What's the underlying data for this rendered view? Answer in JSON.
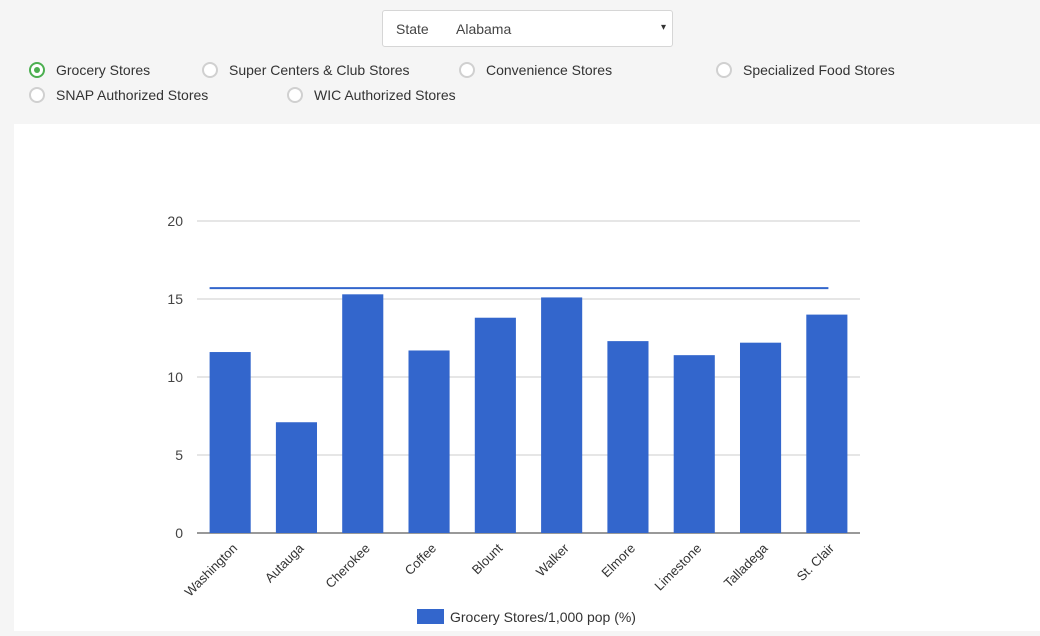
{
  "state_select": {
    "label": "State",
    "value": "Alabama",
    "caret": "▾"
  },
  "store_types": [
    {
      "label": "Grocery Stores",
      "checked": true
    },
    {
      "label": "Super Centers & Club Stores",
      "checked": false
    },
    {
      "label": "Convenience Stores",
      "checked": false
    },
    {
      "label": "Specialized Food Stores",
      "checked": false
    },
    {
      "label": "SNAP Authorized Stores",
      "checked": false
    },
    {
      "label": "WIC Authorized Stores",
      "checked": false
    }
  ],
  "chart_data": {
    "type": "bar",
    "categories": [
      "Washington",
      "Autauga",
      "Cherokee",
      "Coffee",
      "Blount",
      "Walker",
      "Elmore",
      "Limestone",
      "Talladega",
      "St. Clair"
    ],
    "series": [
      {
        "name": "Grocery Stores/1,000 pop (%)",
        "values": [
          11.6,
          7.1,
          15.3,
          11.7,
          13.8,
          15.1,
          12.3,
          11.4,
          12.2,
          14.0
        ],
        "color": "#3366cc"
      }
    ],
    "reference_line": {
      "value": 15.7,
      "color": "#3366cc"
    },
    "ylim": [
      0,
      20
    ],
    "yticks": [
      "0",
      "5",
      "10",
      "15",
      "20"
    ],
    "grid": true,
    "legend": "bottom",
    "xlabel": "",
    "ylabel": ""
  }
}
